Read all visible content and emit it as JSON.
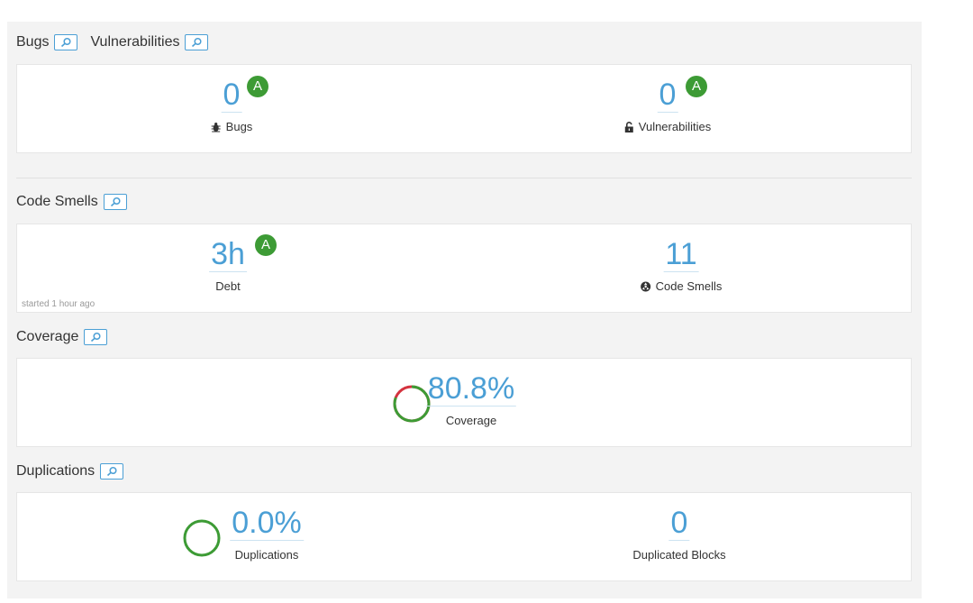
{
  "bugs_section": {
    "title": "Bugs",
    "title2": "Vulnerabilities",
    "bugs": {
      "value": "0",
      "rating": "A",
      "label": "Bugs",
      "icon": "bug-icon"
    },
    "vulnerabilities": {
      "value": "0",
      "rating": "A",
      "label": "Vulnerabilities",
      "icon": "lock-icon"
    }
  },
  "smells_section": {
    "title": "Code Smells",
    "debt": {
      "value": "3h",
      "rating": "A",
      "label": "Debt"
    },
    "code_smells": {
      "value": "11",
      "label": "Code Smells",
      "icon": "code-smell-icon"
    },
    "note": "started 1 hour ago"
  },
  "coverage_section": {
    "title": "Coverage",
    "coverage": {
      "value": "80.8%",
      "label": "Coverage",
      "percent": 80.8
    }
  },
  "duplications_section": {
    "title": "Duplications",
    "duplications": {
      "value": "0.0%",
      "label": "Duplications",
      "percent": 0.0
    },
    "blocks": {
      "value": "0",
      "label": "Duplicated Blocks"
    }
  },
  "colors": {
    "accent": "#4b9fd5",
    "rating_a": "#3d9b35",
    "coverage_good": "#3d9b35",
    "coverage_bad": "#d4333f"
  }
}
